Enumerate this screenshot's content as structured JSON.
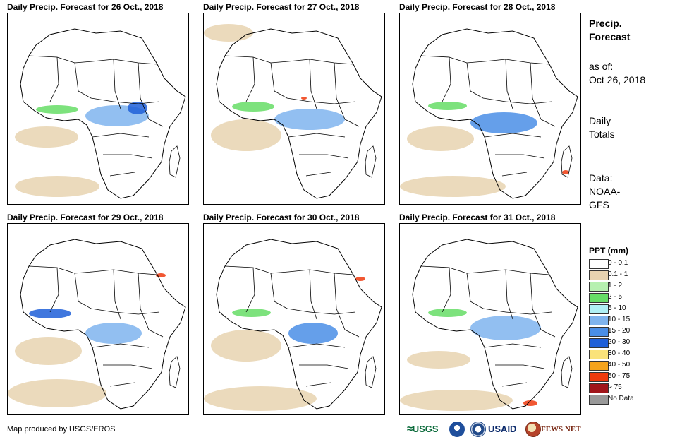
{
  "panels": [
    {
      "title": "Daily Precip. Forecast for 26 Oct., 2018"
    },
    {
      "title": "Daily Precip. Forecast for 27 Oct., 2018"
    },
    {
      "title": "Daily Precip. Forecast for 28 Oct., 2018"
    },
    {
      "title": "Daily Precip. Forecast for 29 Oct., 2018"
    },
    {
      "title": "Daily Precip. Forecast for 30 Oct., 2018"
    },
    {
      "title": "Daily Precip. Forecast for 31 Oct., 2018"
    }
  ],
  "side": {
    "heading_line1": "Precip.",
    "heading_line2": "Forecast",
    "asof_label": "as of:",
    "asof_date": "Oct 26, 2018",
    "totals_line1": "Daily",
    "totals_line2": "Totals",
    "data_line1": "Data:",
    "data_line2": "NOAA-",
    "data_line3": "GFS"
  },
  "legend": {
    "title": "PPT (mm)",
    "items": [
      {
        "label": "0 - 0.1",
        "color": "#ffffff"
      },
      {
        "label": "0.1 - 1",
        "color": "#e8d3b0"
      },
      {
        "label": "1 - 2",
        "color": "#b6f0b0"
      },
      {
        "label": "2 - 5",
        "color": "#66dd66"
      },
      {
        "label": "5 - 10",
        "color": "#b0f0f4"
      },
      {
        "label": "10 - 15",
        "color": "#7fb4ee"
      },
      {
        "label": "15 - 20",
        "color": "#4a8ee6"
      },
      {
        "label": "20 - 30",
        "color": "#1f5fd8"
      },
      {
        "label": "30 - 40",
        "color": "#fae27a"
      },
      {
        "label": "40 - 50",
        "color": "#f4a31c"
      },
      {
        "label": "50 - 75",
        "color": "#ee3a0e"
      },
      {
        "label": "> 75",
        "color": "#a0151a"
      },
      {
        "label": "No Data",
        "color": "#999999"
      }
    ]
  },
  "credit": "Map produced by USGS/EROS",
  "logos": {
    "usgs": "USGS",
    "usaid": "USAID",
    "fewsnet": "FEWS NET"
  }
}
